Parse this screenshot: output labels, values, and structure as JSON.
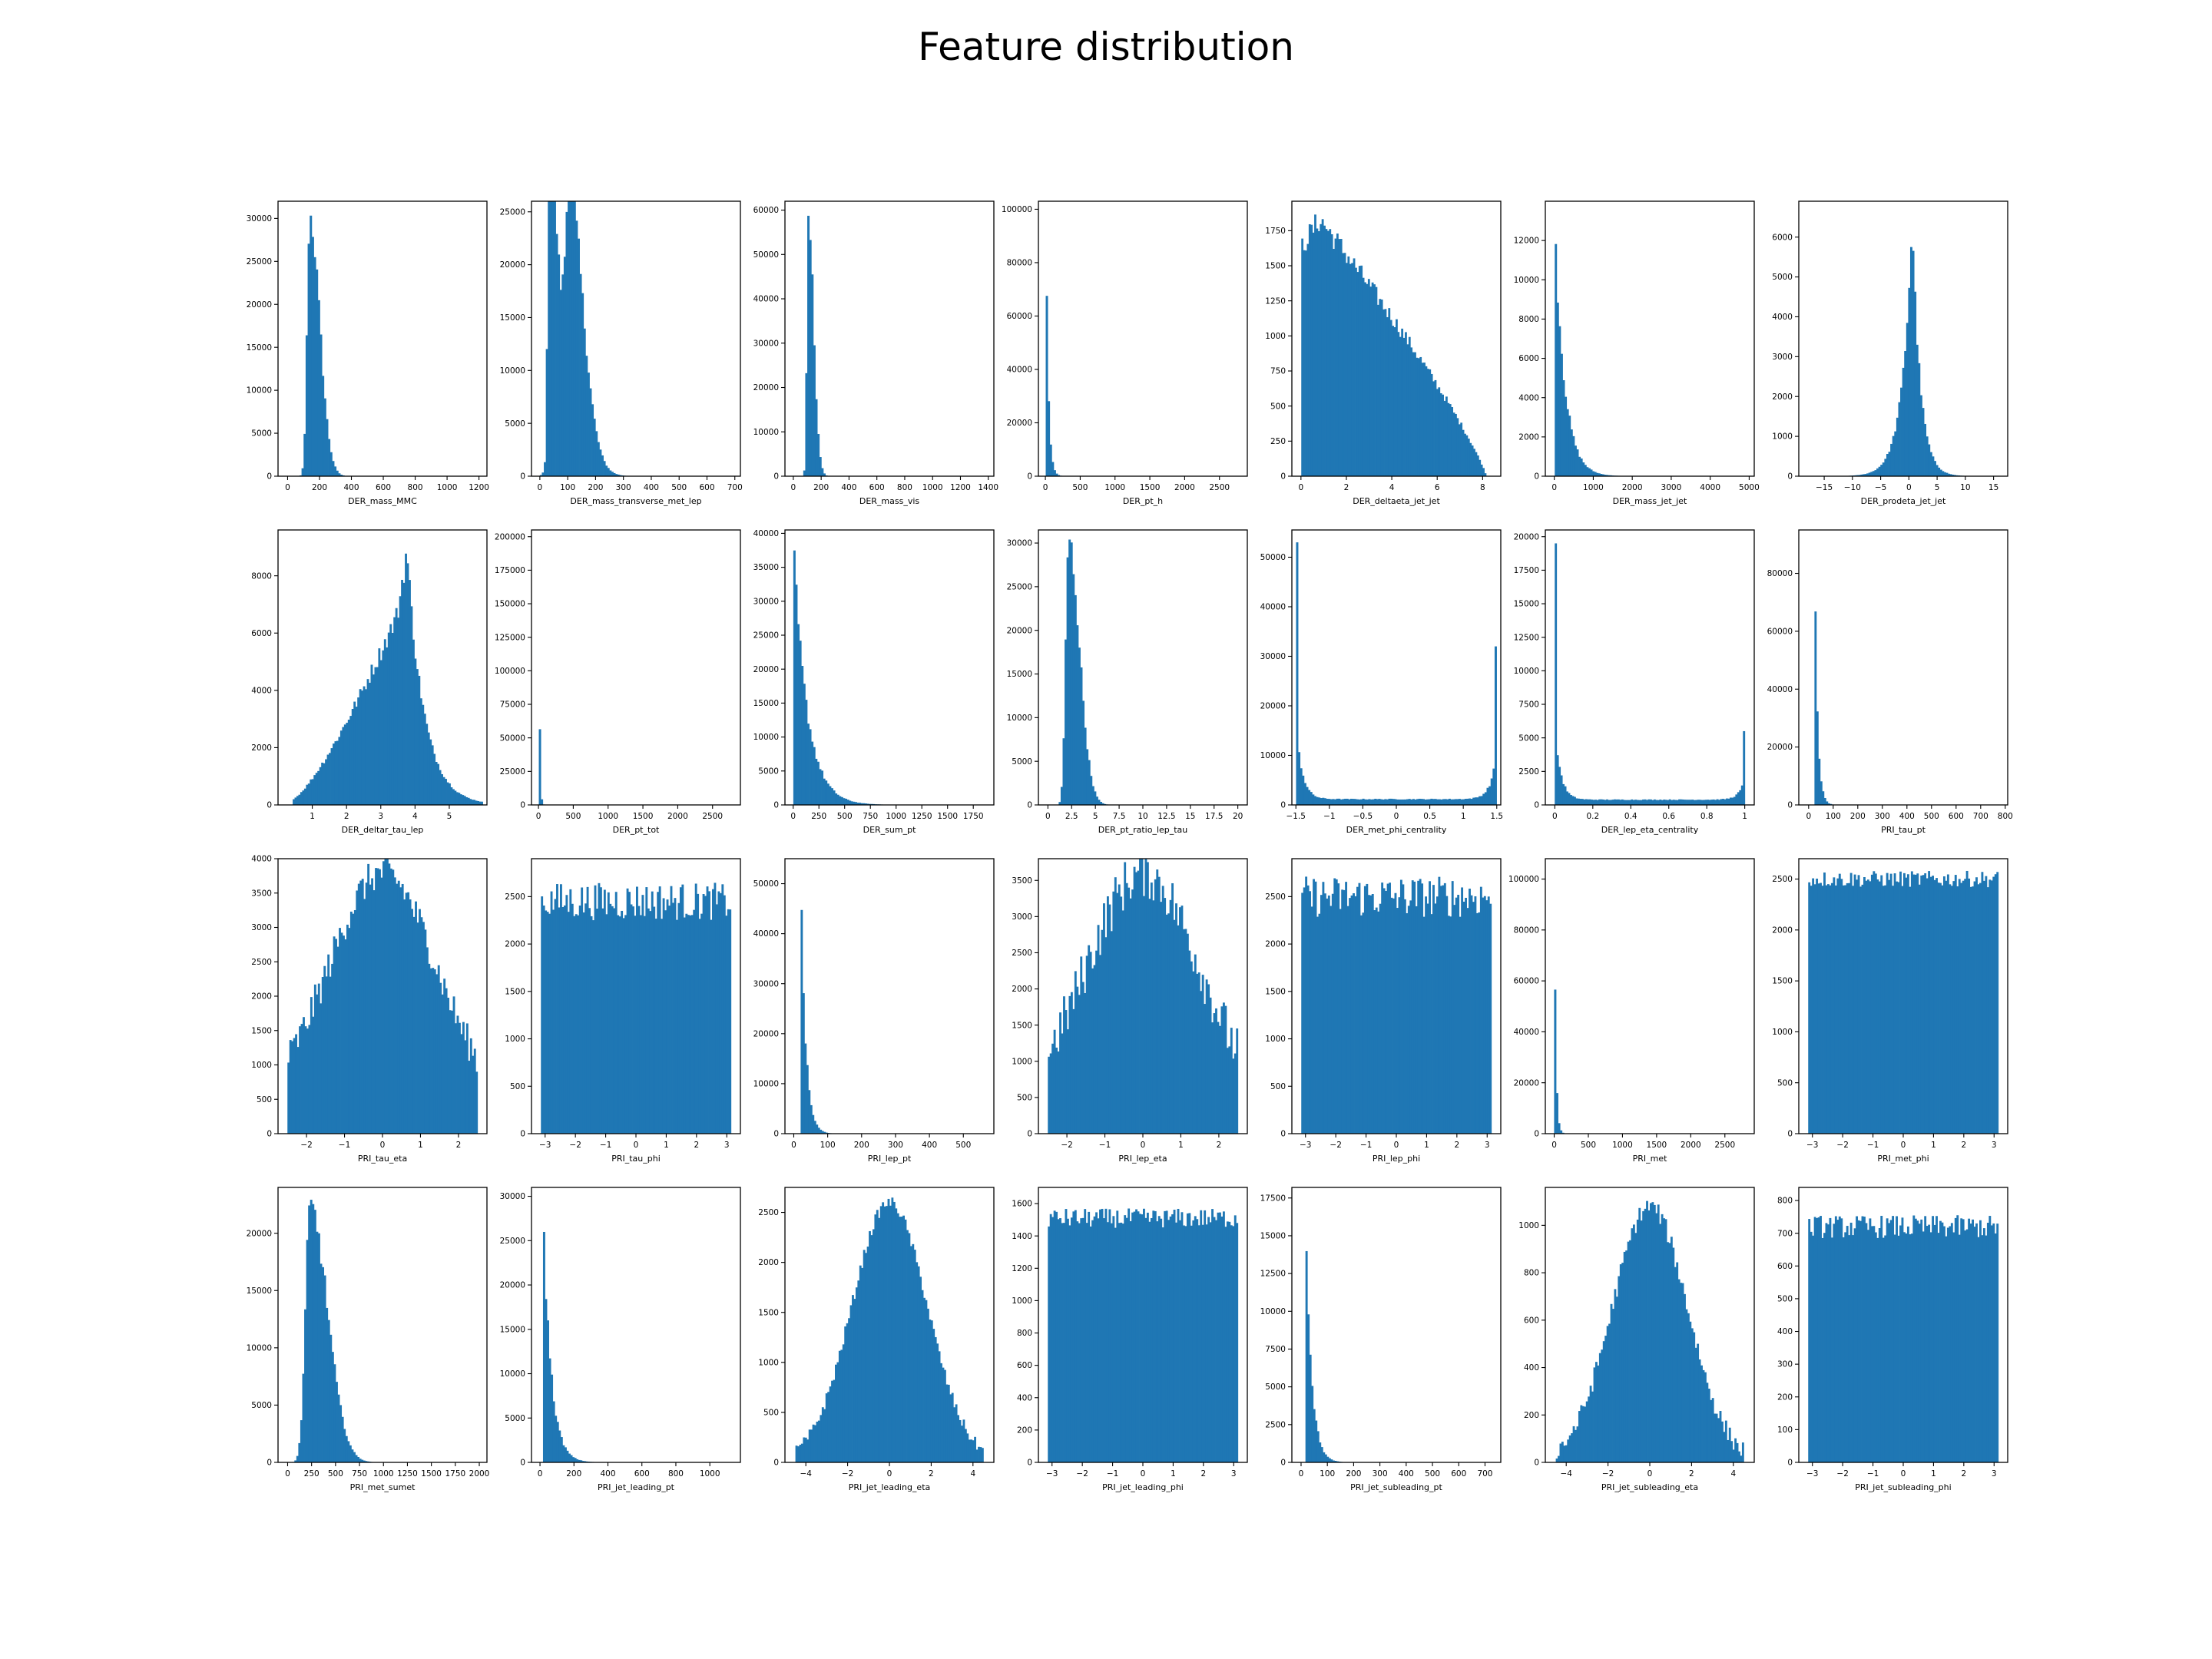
{
  "title": "Feature distribution",
  "colors": {
    "bar": "#1f77b4",
    "axes": "#000000",
    "background": "#ffffff"
  },
  "chart_data": [
    {
      "type": "bar",
      "xlabel": "DER_mass_MMC",
      "xlim": [
        -60,
        1250
      ],
      "ylim": [
        0,
        32000
      ],
      "xticks": [
        0,
        200,
        400,
        600,
        800,
        1000,
        1200
      ],
      "yticks": [
        0,
        5000,
        10000,
        15000,
        20000,
        25000,
        30000
      ],
      "shape": {
        "kind": "peaks",
        "start": 0.015,
        "end": 0.99,
        "peaks": [
          [
            0.14,
            30500,
            0.022
          ]
        ],
        "baseline": 0
      }
    },
    {
      "type": "bar",
      "xlabel": "DER_mass_transverse_met_lep",
      "xlim": [
        -30,
        720
      ],
      "ylim": [
        0,
        26000
      ],
      "xticks": [
        0,
        100,
        200,
        300,
        400,
        500,
        600,
        700
      ],
      "yticks": [
        0,
        5000,
        10000,
        15000,
        20000,
        25000
      ],
      "shape": {
        "kind": "peaks",
        "start": 0.04,
        "end": 0.99,
        "peaks": [
          [
            0.045,
            25000,
            0.012
          ],
          [
            0.09,
            16000,
            0.045
          ],
          [
            0.15,
            15500,
            0.03
          ]
        ],
        "baseline": 0
      }
    },
    {
      "type": "bar",
      "xlabel": "DER_mass_vis",
      "xlim": [
        -60,
        1440
      ],
      "ylim": [
        0,
        62000
      ],
      "xticks": [
        0,
        200,
        400,
        600,
        800,
        1000,
        1200,
        1400
      ],
      "yticks": [
        0,
        10000,
        20000,
        30000,
        40000,
        50000,
        60000
      ],
      "shape": {
        "kind": "peaks",
        "start": 0.03,
        "end": 0.99,
        "peaks": [
          [
            0.085,
            58500,
            0.012
          ]
        ],
        "baseline": 0
      }
    },
    {
      "type": "bar",
      "xlabel": "DER_pt_h",
      "xlim": [
        -100,
        2900
      ],
      "ylim": [
        0,
        103000
      ],
      "xticks": [
        0,
        500,
        1000,
        1500,
        2000,
        2500
      ],
      "yticks": [
        0,
        20000,
        40000,
        60000,
        80000,
        100000
      ],
      "shape": {
        "kind": "decay",
        "start": 0.035,
        "end": 0.99,
        "peak": 98000,
        "tau": 0.012
      }
    },
    {
      "type": "bar",
      "xlabel": "DER_deltaeta_jet_jet",
      "xlim": [
        -0.4,
        8.8
      ],
      "ylim": [
        0,
        1960
      ],
      "xticks": [
        0,
        2,
        4,
        6,
        8
      ],
      "yticks": [
        0,
        250,
        500,
        750,
        1000,
        1250,
        1500,
        1750
      ],
      "shape": {
        "kind": "deltaeta",
        "start": 0.045,
        "end": 0.93
      }
    },
    {
      "type": "bar",
      "xlabel": "DER_mass_jet_jet",
      "xlim": [
        -230,
        5130
      ],
      "ylim": [
        0,
        14000
      ],
      "xticks": [
        0,
        1000,
        2000,
        3000,
        4000,
        5000
      ],
      "yticks": [
        0,
        2000,
        4000,
        6000,
        8000,
        10000,
        12000
      ],
      "shape": {
        "kind": "decay",
        "start": 0.045,
        "end": 0.99,
        "peak": 13200,
        "tau": 0.05
      }
    },
    {
      "type": "bar",
      "xlabel": "DER_prodeta_jet_jet",
      "xlim": [
        -19.5,
        17.5
      ],
      "ylim": [
        0,
        6900
      ],
      "xticks": [
        -15,
        -10,
        -5,
        0,
        5,
        10,
        15
      ],
      "yticks": [
        0,
        1000,
        2000,
        3000,
        4000,
        5000,
        6000
      ],
      "shape": {
        "kind": "laplace",
        "start": 0.02,
        "end": 0.97,
        "center": 0.55,
        "peak": 6600,
        "lw": 0.05,
        "rw": 0.04
      }
    },
    {
      "type": "bar",
      "xlabel": "DER_deltar_tau_lep",
      "xlim": [
        0,
        6.1
      ],
      "ylim": [
        0,
        9600
      ],
      "xticks": [
        1,
        2,
        3,
        4,
        5
      ],
      "yticks": [
        0,
        2000,
        4000,
        6000,
        8000
      ],
      "shape": {
        "kind": "deltar",
        "start": 0.07,
        "end": 0.98
      }
    },
    {
      "type": "bar",
      "xlabel": "DER_pt_tot",
      "xlim": [
        -100,
        2900
      ],
      "ylim": [
        0,
        205000
      ],
      "xticks": [
        0,
        500,
        1000,
        1500,
        2000,
        2500
      ],
      "yticks": [
        0,
        25000,
        50000,
        75000,
        100000,
        125000,
        150000,
        175000,
        200000
      ],
      "shape": {
        "kind": "decay",
        "start": 0.035,
        "end": 0.99,
        "peak": 190000,
        "tau": 0.004
      }
    },
    {
      "type": "bar",
      "xlabel": "DER_sum_pt",
      "xlim": [
        -80,
        1950
      ],
      "ylim": [
        0,
        40500
      ],
      "xticks": [
        0,
        250,
        500,
        750,
        1000,
        1250,
        1500,
        1750
      ],
      "yticks": [
        0,
        5000,
        10000,
        15000,
        20000,
        25000,
        30000,
        35000,
        40000
      ],
      "shape": {
        "kind": "decay",
        "start": 0.04,
        "end": 0.99,
        "peak": 38500,
        "tau": 0.07
      }
    },
    {
      "type": "bar",
      "xlabel": "DER_pt_ratio_lep_tau",
      "xlim": [
        -1,
        21
      ],
      "ylim": [
        0,
        31500
      ],
      "xticks": [
        0.0,
        2.5,
        5.0,
        7.5,
        10.0,
        12.5,
        15.0,
        17.5,
        20.0
      ],
      "yticks": [
        0,
        5000,
        10000,
        15000,
        20000,
        25000,
        30000
      ],
      "shape": {
        "kind": "peaks",
        "start": 0.05,
        "end": 0.99,
        "peaks": [
          [
            0.1,
            30500,
            0.025
          ]
        ],
        "baseline": 0
      }
    },
    {
      "type": "bar",
      "xlabel": "DER_met_phi_centrality",
      "xlim": [
        -1.56,
        1.56
      ],
      "ylim": [
        0,
        55500
      ],
      "xticks": [
        -1.5,
        -1.0,
        -0.5,
        0.0,
        0.5,
        1.0,
        1.5
      ],
      "yticks": [
        0,
        10000,
        20000,
        30000,
        40000,
        50000
      ],
      "shape": {
        "kind": "centrality",
        "start": 0.02,
        "end": 0.98,
        "left": 53000,
        "right": 32000,
        "floor": 1200
      }
    },
    {
      "type": "bar",
      "xlabel": "DER_lep_eta_centrality",
      "xlim": [
        -0.05,
        1.05
      ],
      "ylim": [
        0,
        20500
      ],
      "xticks": [
        0.0,
        0.2,
        0.4,
        0.6,
        0.8,
        1.0
      ],
      "yticks": [
        0,
        2500,
        5000,
        7500,
        10000,
        12500,
        15000,
        17500,
        20000
      ],
      "shape": {
        "kind": "centrality",
        "start": 0.045,
        "end": 0.955,
        "left": 19500,
        "right": 5500,
        "floor": 400
      }
    },
    {
      "type": "bar",
      "xlabel": "PRI_tau_pt",
      "xlim": [
        -40,
        810
      ],
      "ylim": [
        0,
        95000
      ],
      "xticks": [
        0,
        100,
        200,
        300,
        400,
        500,
        600,
        700,
        800
      ],
      "yticks": [
        0,
        20000,
        40000,
        60000,
        80000
      ],
      "shape": {
        "kind": "decay",
        "start": 0.075,
        "end": 0.99,
        "peak": 91000,
        "tau": 0.015
      }
    },
    {
      "type": "bar",
      "xlabel": "PRI_tau_eta",
      "xlim": [
        -2.75,
        2.75
      ],
      "ylim": [
        0,
        4000
      ],
      "xticks": [
        -2,
        -1,
        0,
        1,
        2
      ],
      "yticks": [
        0,
        500,
        1000,
        1500,
        2000,
        2500,
        3000,
        3500,
        4000
      ],
      "shape": {
        "kind": "bump",
        "start": 0.045,
        "end": 0.955,
        "peak": 3800,
        "sigma": 0.28,
        "floor": 400,
        "noise": 250
      }
    },
    {
      "type": "bar",
      "xlabel": "PRI_tau_phi",
      "xlim": [
        -3.45,
        3.45
      ],
      "ylim": [
        0,
        2900
      ],
      "xticks": [
        -3,
        -2,
        -1,
        0,
        1,
        2,
        3
      ],
      "yticks": [
        0,
        500,
        1000,
        1500,
        2000,
        2500
      ],
      "shape": {
        "kind": "flat",
        "start": 0.045,
        "end": 0.955,
        "level": 2450,
        "noise": 200
      }
    },
    {
      "type": "bar",
      "xlabel": "PRI_lep_pt",
      "xlim": [
        -26,
        590
      ],
      "ylim": [
        0,
        55000
      ],
      "xticks": [
        0,
        100,
        200,
        300,
        400,
        500
      ],
      "yticks": [
        0,
        10000,
        20000,
        30000,
        40000,
        50000
      ],
      "shape": {
        "kind": "decay",
        "start": 0.075,
        "end": 0.99,
        "peak": 53000,
        "tau": 0.025
      }
    },
    {
      "type": "bar",
      "xlabel": "PRI_lep_eta",
      "xlim": [
        -2.75,
        2.75
      ],
      "ylim": [
        0,
        3800
      ],
      "xticks": [
        -2,
        -1,
        0,
        1,
        2
      ],
      "yticks": [
        0,
        500,
        1000,
        1500,
        2000,
        2500,
        3000,
        3500
      ],
      "shape": {
        "kind": "bump",
        "start": 0.045,
        "end": 0.955,
        "peak": 3600,
        "sigma": 0.3,
        "floor": 300,
        "noise": 350
      }
    },
    {
      "type": "bar",
      "xlabel": "PRI_lep_phi",
      "xlim": [
        -3.45,
        3.45
      ],
      "ylim": [
        0,
        2900
      ],
      "xticks": [
        -3,
        -2,
        -1,
        0,
        1,
        2,
        3
      ],
      "yticks": [
        0,
        500,
        1000,
        1500,
        2000,
        2500
      ],
      "shape": {
        "kind": "flat",
        "start": 0.045,
        "end": 0.955,
        "level": 2500,
        "noise": 220
      }
    },
    {
      "type": "bar",
      "xlabel": "PRI_met",
      "xlim": [
        -130,
        2930
      ],
      "ylim": [
        0,
        108000
      ],
      "xticks": [
        0,
        500,
        1000,
        1500,
        2000,
        2500
      ],
      "yticks": [
        0,
        20000,
        40000,
        60000,
        80000,
        100000
      ],
      "shape": {
        "kind": "decay",
        "start": 0.042,
        "end": 0.99,
        "peak": 103000,
        "tau": 0.008
      }
    },
    {
      "type": "bar",
      "xlabel": "PRI_met_phi",
      "xlim": [
        -3.45,
        3.45
      ],
      "ylim": [
        0,
        2700
      ],
      "xticks": [
        -3,
        -2,
        -1,
        0,
        1,
        2,
        3
      ],
      "yticks": [
        0,
        500,
        1000,
        1500,
        2000,
        2500
      ],
      "shape": {
        "kind": "flat",
        "start": 0.045,
        "end": 0.955,
        "level": 2500,
        "noise": 80
      }
    },
    {
      "type": "bar",
      "xlabel": "PRI_met_sumet",
      "xlim": [
        -100,
        2080
      ],
      "ylim": [
        0,
        24000
      ],
      "xticks": [
        0,
        250,
        500,
        750,
        1000,
        1250,
        1500,
        1750,
        2000
      ],
      "yticks": [
        0,
        5000,
        10000,
        15000,
        20000
      ],
      "shape": {
        "kind": "peaks",
        "start": 0.05,
        "end": 0.99,
        "peaks": [
          [
            0.11,
            22500,
            0.04
          ]
        ],
        "baseline": 0
      }
    },
    {
      "type": "bar",
      "xlabel": "PRI_jet_leading_pt",
      "xlim": [
        -50,
        1180
      ],
      "ylim": [
        0,
        31000
      ],
      "xticks": [
        0,
        200,
        400,
        600,
        800,
        1000
      ],
      "yticks": [
        0,
        5000,
        10000,
        15000,
        20000,
        25000,
        30000
      ],
      "shape": {
        "kind": "decay",
        "start": 0.055,
        "end": 0.99,
        "peak": 29500,
        "tau": 0.04
      }
    },
    {
      "type": "bar",
      "xlabel": "PRI_jet_leading_eta",
      "xlim": [
        -5,
        5
      ],
      "ylim": [
        0,
        2750
      ],
      "xticks": [
        -4,
        -2,
        0,
        2,
        4
      ],
      "yticks": [
        0,
        500,
        1000,
        1500,
        2000,
        2500
      ],
      "shape": {
        "kind": "bump",
        "start": 0.05,
        "end": 0.95,
        "peak": 2600,
        "sigma": 0.2,
        "floor": 0,
        "noise": 60
      }
    },
    {
      "type": "bar",
      "xlabel": "PRI_jet_leading_phi",
      "xlim": [
        -3.45,
        3.45
      ],
      "ylim": [
        0,
        1700
      ],
      "xticks": [
        -3,
        -2,
        -1,
        0,
        1,
        2,
        3
      ],
      "yticks": [
        0,
        200,
        400,
        600,
        800,
        1000,
        1200,
        1400,
        1600
      ],
      "shape": {
        "kind": "flat",
        "start": 0.045,
        "end": 0.955,
        "level": 1510,
        "noise": 60
      }
    },
    {
      "type": "bar",
      "xlabel": "PRI_jet_subleading_pt",
      "xlim": [
        -35,
        760
      ],
      "ylim": [
        0,
        18200
      ],
      "xticks": [
        0,
        100,
        200,
        300,
        400,
        500,
        600,
        700
      ],
      "yticks": [
        0,
        2500,
        5000,
        7500,
        10000,
        12500,
        15000,
        17500
      ],
      "shape": {
        "kind": "decay",
        "start": 0.065,
        "end": 0.99,
        "peak": 17300,
        "tau": 0.03
      }
    },
    {
      "type": "bar",
      "xlabel": "PRI_jet_subleading_eta",
      "xlim": [
        -5,
        5
      ],
      "ylim": [
        0,
        1160
      ],
      "xticks": [
        -4,
        -2,
        0,
        2,
        4
      ],
      "yticks": [
        0,
        200,
        400,
        600,
        800,
        1000
      ],
      "shape": {
        "kind": "bump",
        "start": 0.05,
        "end": 0.95,
        "peak": 1080,
        "sigma": 0.2,
        "floor": 0,
        "noise": 40
      }
    },
    {
      "type": "bar",
      "xlabel": "PRI_jet_subleading_phi",
      "xlim": [
        -3.45,
        3.45
      ],
      "ylim": [
        0,
        840
      ],
      "xticks": [
        -3,
        -2,
        -1,
        0,
        1,
        2,
        3
      ],
      "yticks": [
        0,
        100,
        200,
        300,
        400,
        500,
        600,
        700,
        800
      ],
      "shape": {
        "kind": "flat",
        "start": 0.045,
        "end": 0.955,
        "level": 720,
        "noise": 35
      }
    }
  ]
}
